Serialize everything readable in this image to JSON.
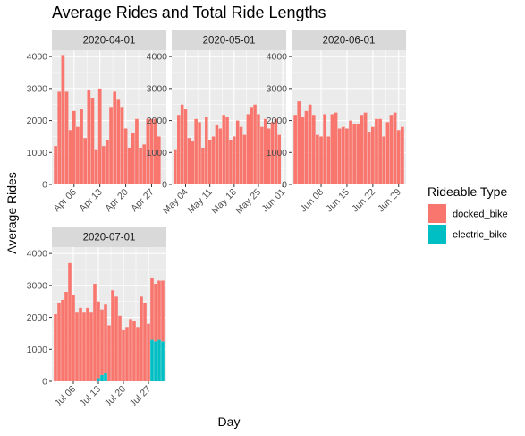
{
  "chart_data": {
    "type": "bar",
    "title": "Average Rides and Total Ride Lengths",
    "xlabel": "Day",
    "ylabel": "Average Rides",
    "ylim": [
      0,
      4200
    ],
    "y_ticks": [
      0,
      1000,
      2000,
      3000,
      4000
    ],
    "grid": true,
    "legend": {
      "title": "Rideable Type",
      "placement": "right",
      "entries": [
        {
          "label": "docked_bike",
          "color": "#F8766D"
        },
        {
          "label": "electric_bike",
          "color": "#00BFC4"
        }
      ]
    },
    "colors": {
      "docked_bike": "#F8766D",
      "electric_bike": "#00BFC4",
      "panel": "#EBEBEB",
      "strip": "#D9D9D9"
    },
    "facets": [
      {
        "label": "2020-04-01",
        "start_date": "2020-04-01",
        "x_ticks": [
          {
            "day": 6,
            "label": "Apr 06"
          },
          {
            "day": 13,
            "label": "Apr 13"
          },
          {
            "day": 20,
            "label": "Apr 20"
          },
          {
            "day": 27,
            "label": "Apr 27"
          }
        ],
        "x_range": [
          0,
          31
        ],
        "series": [
          {
            "name": "docked_bike",
            "values": [
              1200,
              2900,
              4050,
              2900,
              1700,
              2300,
              1800,
              2350,
              1450,
              2950,
              2700,
              1100,
              3000,
              1200,
              1400,
              2400,
              2900,
              2650,
              2400,
              1750,
              1150,
              1600,
              2050,
              1150,
              1250,
              2050,
              2050,
              2050,
              1500
            ]
          },
          {
            "name": "electric_bike",
            "values": [
              0,
              0,
              0,
              0,
              0,
              0,
              0,
              0,
              0,
              0,
              0,
              0,
              0,
              0,
              0,
              0,
              0,
              0,
              0,
              0,
              0,
              0,
              0,
              0,
              0,
              0,
              0,
              0,
              0
            ]
          }
        ]
      },
      {
        "label": "2020-05-01",
        "start_date": "2020-05-01",
        "x_ticks": [
          {
            "day": 4,
            "label": "May 04"
          },
          {
            "day": 11,
            "label": "May 11"
          },
          {
            "day": 18,
            "label": "May 18"
          },
          {
            "day": 25,
            "label": "May 25"
          },
          {
            "day": 32,
            "label": "Jun 01"
          }
        ],
        "x_range": [
          0,
          33
        ],
        "series": [
          {
            "name": "docked_bike",
            "values": [
              1100,
              2150,
              2500,
              2350,
              1450,
              1350,
              2050,
              1950,
              1150,
              2100,
              1400,
              1500,
              1850,
              1750,
              2150,
              2100,
              1400,
              1500,
              2000,
              1800,
              1550,
              2200,
              2400,
              2500,
              2200,
              1800,
              2050,
              1750,
              1950,
              2050,
              1550
            ]
          },
          {
            "name": "electric_bike",
            "values": [
              0,
              0,
              0,
              0,
              0,
              0,
              0,
              0,
              0,
              0,
              0,
              0,
              0,
              0,
              0,
              0,
              0,
              0,
              0,
              0,
              0,
              0,
              0,
              0,
              0,
              0,
              0,
              0,
              0,
              0,
              0
            ]
          }
        ]
      },
      {
        "label": "2020-06-01",
        "start_date": "2020-06-01",
        "x_ticks": [
          {
            "day": 8,
            "label": "Jun 08"
          },
          {
            "day": 15,
            "label": "Jun 15"
          },
          {
            "day": 22,
            "label": "Jun 22"
          },
          {
            "day": 29,
            "label": "Jun 29"
          }
        ],
        "x_range": [
          0,
          31
        ],
        "series": [
          {
            "name": "docked_bike",
            "values": [
              2150,
              2600,
              2100,
              2300,
              2500,
              2150,
              1550,
              1500,
              2200,
              1500,
              2200,
              2250,
              1750,
              1800,
              1750,
              2000,
              1900,
              1900,
              2150,
              2250,
              1650,
              1800,
              2050,
              2050,
              1500,
              1950,
              2150,
              2250,
              1700,
              1800
            ]
          },
          {
            "name": "electric_bike",
            "values": [
              0,
              0,
              0,
              0,
              0,
              0,
              0,
              0,
              0,
              0,
              0,
              0,
              0,
              0,
              0,
              0,
              0,
              0,
              0,
              0,
              0,
              0,
              0,
              0,
              0,
              0,
              0,
              0,
              0,
              0
            ]
          }
        ]
      },
      {
        "label": "2020-07-01",
        "start_date": "2020-07-01",
        "x_ticks": [
          {
            "day": 6,
            "label": "Jul 06"
          },
          {
            "day": 13,
            "label": "Jul 13"
          },
          {
            "day": 20,
            "label": "Jul 20"
          },
          {
            "day": 27,
            "label": "Jul 27"
          }
        ],
        "x_range": [
          0,
          32
        ],
        "series": [
          {
            "name": "docked_bike",
            "values": [
              2100,
              2450,
              2550,
              2800,
              3700,
              2700,
              2150,
              2300,
              2150,
              2300,
              2150,
              3050,
              2400,
              2050,
              2150,
              1750,
              2850,
              2650,
              2050,
              1600,
              1700,
              1950,
              1900,
              1700,
              2650,
              2450,
              1800,
              1950,
              1800,
              1850,
              1900
            ]
          },
          {
            "name": "electric_bike",
            "values": [
              0,
              0,
              0,
              0,
              0,
              0,
              0,
              0,
              0,
              0,
              0,
              0,
              100,
              200,
              250,
              0,
              0,
              0,
              0,
              0,
              0,
              0,
              0,
              0,
              0,
              0,
              0,
              1300,
              1250,
              1300,
              1250
            ]
          }
        ]
      }
    ]
  }
}
